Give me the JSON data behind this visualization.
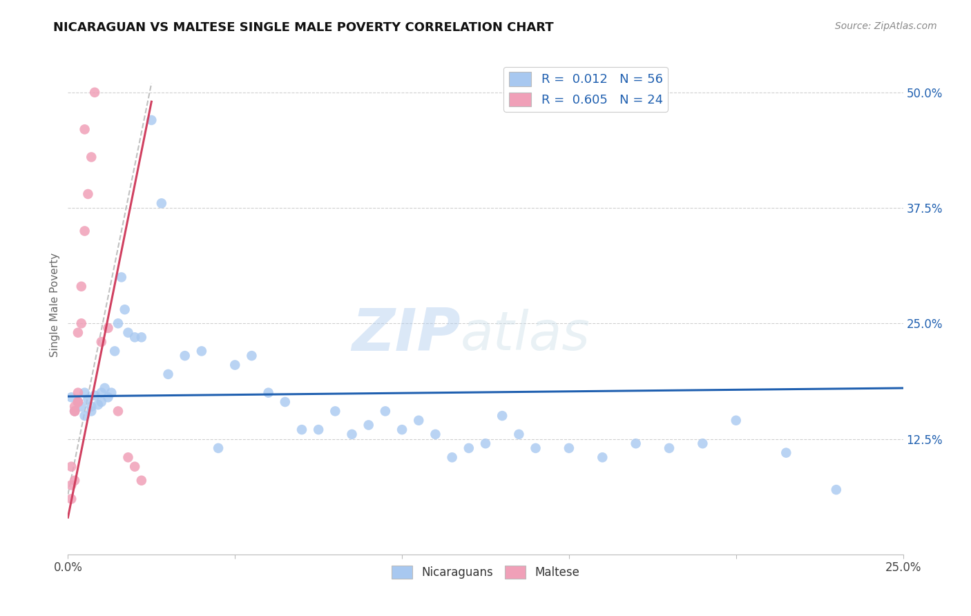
{
  "title": "NICARAGUAN VS MALTESE SINGLE MALE POVERTY CORRELATION CHART",
  "source_text": "Source: ZipAtlas.com",
  "ylabel": "Single Male Poverty",
  "xlim": [
    0.0,
    0.25
  ],
  "ylim": [
    0.0,
    0.54
  ],
  "xtick_positions": [
    0.0,
    0.05,
    0.1,
    0.15,
    0.2,
    0.25
  ],
  "xtick_labels": [
    "0.0%",
    "",
    "",
    "",
    "",
    "25.0%"
  ],
  "ytick_vals_right": [
    0.125,
    0.25,
    0.375,
    0.5
  ],
  "ytick_labels_right": [
    "12.5%",
    "25.0%",
    "37.5%",
    "50.0%"
  ],
  "blue_color": "#a8c8f0",
  "pink_color": "#f0a0b8",
  "blue_line_color": "#2060b0",
  "pink_line_color": "#d04060",
  "ref_line_color": "#c0c0c0",
  "watermark_color": "#c8dff0",
  "blue_scatter_x": [
    0.001,
    0.002,
    0.003,
    0.004,
    0.005,
    0.005,
    0.006,
    0.007,
    0.007,
    0.008,
    0.009,
    0.01,
    0.01,
    0.011,
    0.012,
    0.013,
    0.014,
    0.015,
    0.016,
    0.017,
    0.018,
    0.02,
    0.022,
    0.025,
    0.028,
    0.03,
    0.035,
    0.04,
    0.045,
    0.05,
    0.055,
    0.06,
    0.065,
    0.07,
    0.075,
    0.08,
    0.085,
    0.09,
    0.095,
    0.1,
    0.105,
    0.11,
    0.115,
    0.12,
    0.125,
    0.13,
    0.135,
    0.14,
    0.15,
    0.16,
    0.17,
    0.18,
    0.19,
    0.2,
    0.215,
    0.23
  ],
  "blue_scatter_y": [
    0.17,
    0.155,
    0.165,
    0.16,
    0.175,
    0.15,
    0.168,
    0.16,
    0.155,
    0.172,
    0.162,
    0.175,
    0.165,
    0.18,
    0.17,
    0.175,
    0.22,
    0.25,
    0.3,
    0.265,
    0.24,
    0.235,
    0.235,
    0.47,
    0.38,
    0.195,
    0.215,
    0.22,
    0.115,
    0.205,
    0.215,
    0.175,
    0.165,
    0.135,
    0.135,
    0.155,
    0.13,
    0.14,
    0.155,
    0.135,
    0.145,
    0.13,
    0.105,
    0.115,
    0.12,
    0.15,
    0.13,
    0.115,
    0.115,
    0.105,
    0.12,
    0.115,
    0.12,
    0.145,
    0.11,
    0.07
  ],
  "pink_scatter_x": [
    0.001,
    0.001,
    0.001,
    0.002,
    0.002,
    0.002,
    0.002,
    0.003,
    0.003,
    0.003,
    0.003,
    0.004,
    0.004,
    0.005,
    0.005,
    0.006,
    0.007,
    0.008,
    0.01,
    0.012,
    0.015,
    0.018,
    0.02,
    0.022
  ],
  "pink_scatter_y": [
    0.06,
    0.075,
    0.095,
    0.08,
    0.155,
    0.155,
    0.16,
    0.165,
    0.165,
    0.175,
    0.24,
    0.25,
    0.29,
    0.35,
    0.46,
    0.39,
    0.43,
    0.5,
    0.23,
    0.245,
    0.155,
    0.105,
    0.095,
    0.08
  ],
  "blue_trend_x": [
    0.0,
    0.25
  ],
  "blue_trend_y": [
    0.171,
    0.18
  ],
  "pink_trend_x": [
    0.0,
    0.025
  ],
  "pink_trend_y": [
    0.04,
    0.49
  ],
  "ref_line_x": [
    0.0,
    0.025
  ],
  "ref_line_y": [
    0.065,
    0.51
  ]
}
